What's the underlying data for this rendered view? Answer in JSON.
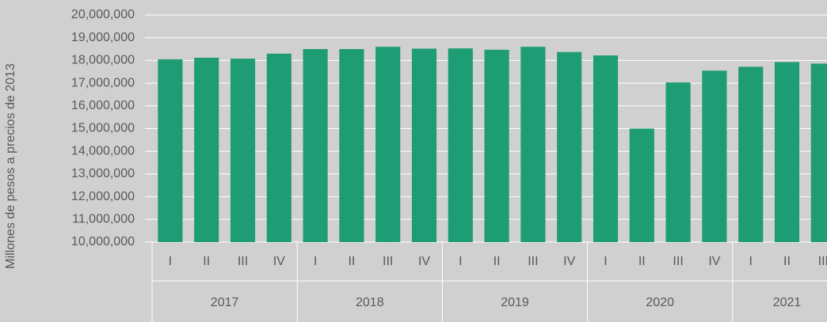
{
  "chart_data": {
    "type": "bar",
    "y_label": "Millones de pesos a precios de 2013",
    "groups": [
      {
        "name": "2017",
        "categories": [
          "I",
          "II",
          "III",
          "IV"
        ]
      },
      {
        "name": "2018",
        "categories": [
          "I",
          "II",
          "III",
          "IV"
        ]
      },
      {
        "name": "2019",
        "categories": [
          "I",
          "II",
          "III",
          "IV"
        ]
      },
      {
        "name": "2020",
        "categories": [
          "I",
          "II",
          "III",
          "IV"
        ]
      },
      {
        "name": "2021",
        "categories": [
          "I",
          "II",
          "III"
        ]
      }
    ],
    "values": [
      18050000,
      18120000,
      18080000,
      18300000,
      18500000,
      18500000,
      18600000,
      18520000,
      18530000,
      18470000,
      18600000,
      18370000,
      18220000,
      15000000,
      17030000,
      17550000,
      17720000,
      17930000,
      17860000
    ],
    "color": "#1e9c74",
    "ylim": [
      10000000,
      20000000
    ],
    "yticks": [
      {
        "value": 10000000,
        "label": "10,000,000"
      },
      {
        "value": 11000000,
        "label": "11,000,000"
      },
      {
        "value": 12000000,
        "label": "12,000,000"
      },
      {
        "value": 13000000,
        "label": "13,000,000"
      },
      {
        "value": 14000000,
        "label": "14,000,000"
      },
      {
        "value": 15000000,
        "label": "15,000,000"
      },
      {
        "value": 16000000,
        "label": "16,000,000"
      },
      {
        "value": 17000000,
        "label": "17,000,000"
      },
      {
        "value": 18000000,
        "label": "18,000,000"
      },
      {
        "value": 19000000,
        "label": "19,000,000"
      },
      {
        "value": 20000000,
        "label": "20,000,000"
      }
    ],
    "grid": true
  }
}
